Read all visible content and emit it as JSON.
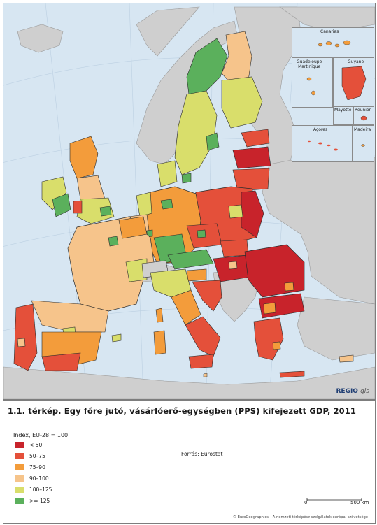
{
  "map": {
    "insets": [
      {
        "name": "canarias",
        "label": "Canarias"
      },
      {
        "name": "guadeloupe-martinique",
        "label": "Guadeloupe\nMartinique"
      },
      {
        "name": "guyane",
        "label": "Guyane"
      },
      {
        "name": "mayotte",
        "label": "Mayotte"
      },
      {
        "name": "reunion",
        "label": "Réunion"
      },
      {
        "name": "acores",
        "label": "Açores"
      },
      {
        "name": "madeira",
        "label": "Madeira"
      }
    ],
    "logo_main": "REGIO",
    "logo_sub": "gis"
  },
  "title": "1.1. térkép. Egy főre jutó, vásárlóerő-egységben (PPS) kifejezett GDP, 2011",
  "legend": {
    "title": "Index, EU-28 = 100",
    "classes": [
      {
        "label": "< 50",
        "color": "#c8232b"
      },
      {
        "label": "50–75",
        "color": "#e4503a"
      },
      {
        "label": "75–90",
        "color": "#f39c3b"
      },
      {
        "label": "90–100",
        "color": "#f6c48b"
      },
      {
        "label": "100–125",
        "color": "#d9de6b"
      },
      {
        "label": ">= 125",
        "color": "#5bb05c"
      }
    ]
  },
  "source": "Forrás: Eurostat",
  "scale": {
    "zero": "0",
    "max": "500 km"
  },
  "copyright": "© EuroGeographics – A nemzeti térképész szolgálatok európai szövetsége",
  "colors": {
    "sea": "#d7e6f2",
    "non_eu": "#cfcfcf",
    "border": "#2b2b2b"
  }
}
